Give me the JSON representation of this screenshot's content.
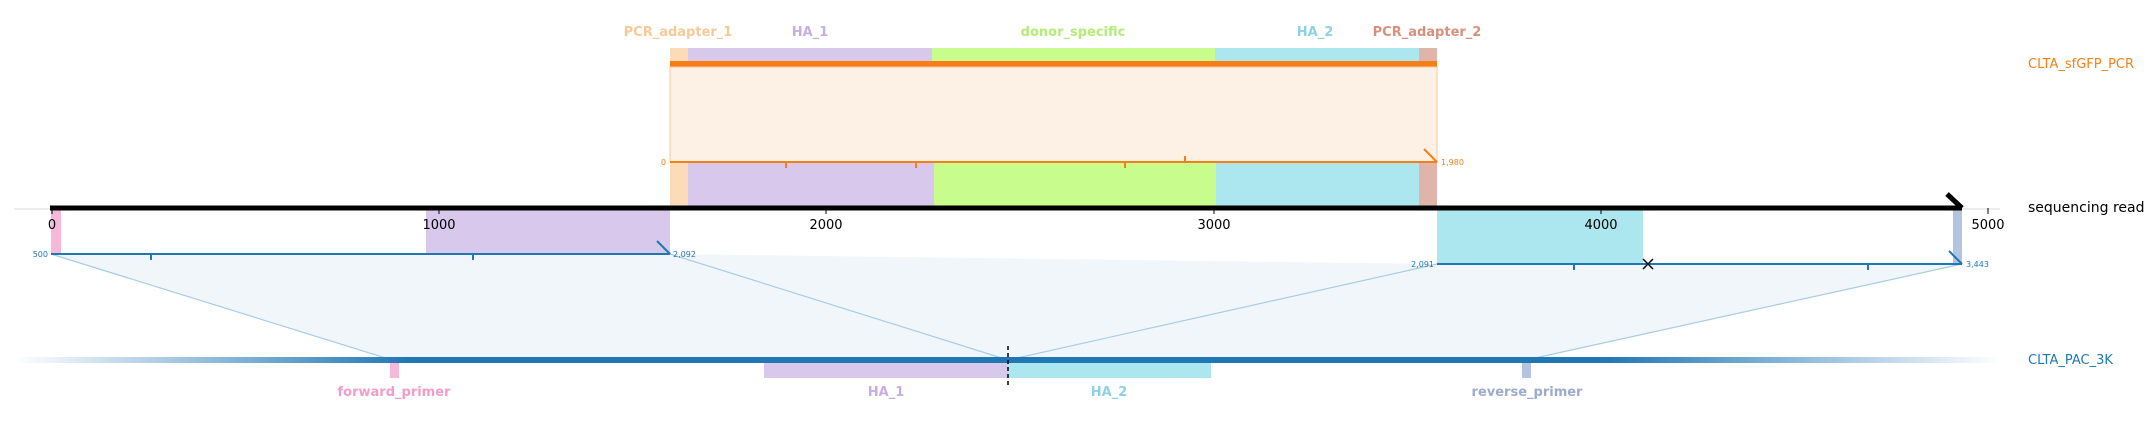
{
  "ruler": {
    "ticks": [
      "0",
      "1000",
      "2000",
      "3000",
      "4000",
      "5000"
    ]
  },
  "labels": {
    "pcr_name": "CLTA_sfGFP_PCR",
    "read_name": "sequencing read",
    "ref_name": "CLTA_PAC_3K"
  },
  "pcr_features": [
    {
      "name": "PCR_adapter_1",
      "color": "#fcdcb8",
      "text_color": "#f8c898"
    },
    {
      "name": "HA_1",
      "color": "#d8c8ec",
      "text_color": "#c8aee0"
    },
    {
      "name": "donor_specific",
      "color": "#c8fc8c",
      "text_color": "#b4ec78"
    },
    {
      "name": "HA_2",
      "color": "#ace6ef",
      "text_color": "#8cd2e4"
    },
    {
      "name": "PCR_adapter_2",
      "color": "#e0b4a8",
      "text_color": "#d8907c"
    }
  ],
  "pcr_alignment": {
    "start_label": "0",
    "end_label": "1,980"
  },
  "read_alignments": [
    {
      "start_label": "500",
      "end_label": "2,092"
    },
    {
      "start_label": "2,091",
      "end_label": "3,443"
    }
  ],
  "ref_features": [
    {
      "name": "forward_primer",
      "color": "#f6b8d8",
      "text_color": "#f49cc8"
    },
    {
      "name": "HA_1",
      "color": "#d8c8ec",
      "text_color": "#c8aee0"
    },
    {
      "name": "HA_2",
      "color": "#ace6ef",
      "text_color": "#8cd2e4"
    },
    {
      "name": "reverse_primer",
      "color": "#b4c4e0",
      "text_color": "#9cacd0"
    }
  ],
  "colors": {
    "pcr": "#f57f17",
    "read": "#000000",
    "ref": "#1f77b4"
  }
}
